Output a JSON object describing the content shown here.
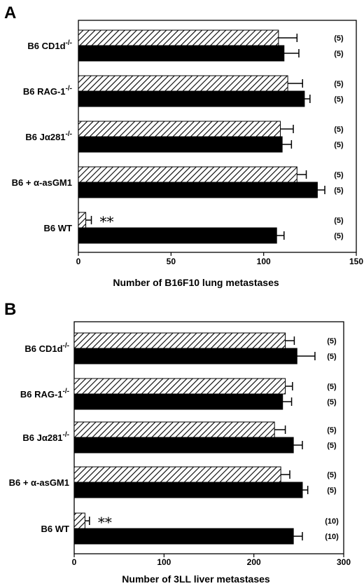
{
  "chart_data": [
    {
      "panel": "A",
      "type": "bar",
      "orientation": "horizontal",
      "categories": [
        "B6 CD1d-/-",
        "B6 RAG-1-/-",
        "B6 Jα281-/-",
        "B6 + α-asGM1",
        "B6 WT"
      ],
      "category_labels": [
        {
          "base": "B6 CD1d",
          "sup": "-/-"
        },
        {
          "base": "B6 RAG-1",
          "sup": "-/-"
        },
        {
          "base": "B6 Jα281",
          "sup": "-/-"
        },
        {
          "base": "B6 + α-asGM1",
          "sup": ""
        },
        {
          "base": "B6 WT",
          "sup": ""
        }
      ],
      "series": [
        {
          "pattern": "hatched",
          "values": [
            108,
            113,
            109,
            118,
            4
          ],
          "errors": [
            10,
            8,
            7,
            5,
            3
          ],
          "n_labels": [
            "(5)",
            "(5)",
            "(5)",
            "(5)",
            "(5)"
          ]
        },
        {
          "pattern": "solid",
          "values": [
            111,
            122,
            110,
            129,
            107
          ],
          "errors": [
            8,
            3,
            5,
            4,
            4
          ],
          "n_labels": [
            "(5)",
            "(5)",
            "(5)",
            "(5)",
            "(5)"
          ]
        }
      ],
      "annotations": [
        {
          "category": "B6 WT",
          "series": 0,
          "text": "**"
        }
      ],
      "xlabel": "Number of B16F10 lung metastases",
      "xlim": [
        0,
        150
      ],
      "xticks": [
        0,
        50,
        100,
        150
      ]
    },
    {
      "panel": "B",
      "type": "bar",
      "orientation": "horizontal",
      "categories": [
        "B6 CD1d-/-",
        "B6 RAG-1-/-",
        "B6 Jα281-/-",
        "B6 + α-asGM1",
        "B6 WT"
      ],
      "category_labels": [
        {
          "base": "B6 CD1d",
          "sup": "-/-"
        },
        {
          "base": "B6 RAG-1",
          "sup": "-/-"
        },
        {
          "base": "B6 Jα281",
          "sup": "-/-"
        },
        {
          "base": "B6 + α-asGM1",
          "sup": ""
        },
        {
          "base": "B6 WT",
          "sup": ""
        }
      ],
      "series": [
        {
          "pattern": "hatched",
          "values": [
            235,
            235,
            223,
            230,
            12
          ],
          "errors": [
            10,
            8,
            12,
            10,
            5
          ],
          "n_labels": [
            "(5)",
            "(5)",
            "(5)",
            "(5)",
            "(10)"
          ]
        },
        {
          "pattern": "solid",
          "values": [
            248,
            232,
            244,
            254,
            244
          ],
          "errors": [
            20,
            10,
            10,
            6,
            10
          ],
          "n_labels": [
            "(5)",
            "(5)",
            "(5)",
            "(5)",
            "(10)"
          ]
        }
      ],
      "annotations": [
        {
          "category": "B6 WT",
          "series": 0,
          "text": "**"
        }
      ],
      "xlabel": "Number of 3LL liver metastases",
      "xlim": [
        0,
        300
      ],
      "xticks": [
        0,
        100,
        200,
        300
      ]
    }
  ]
}
